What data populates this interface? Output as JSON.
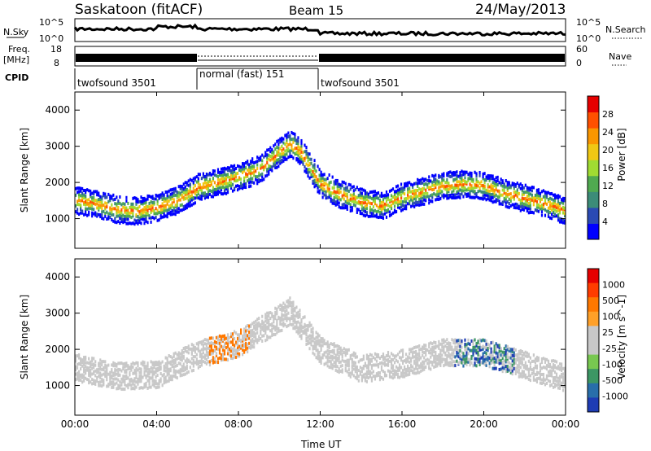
{
  "header": {
    "title": "Saskatoon (fitACF)",
    "beam": "Beam 15",
    "date": "24/May/2013"
  },
  "noise_panel": {
    "left_label": "N.Sky",
    "right_label": "N.Search",
    "left_ticks": [
      "10^5",
      "10^0"
    ],
    "right_ticks": [
      "10^5",
      "10^0"
    ]
  },
  "freq_panel": {
    "left_label_1": "Freq.",
    "left_label_2": "[MHz]",
    "left_ticks": [
      "18",
      "8"
    ],
    "right_label": "Nave",
    "right_ticks": [
      "60",
      "0"
    ]
  },
  "cpid_panel": {
    "label": "CPID",
    "segments": [
      {
        "label": "twofsound 3501",
        "start": 0,
        "end": 6
      },
      {
        "label": "normal (fast) 151",
        "start": 6,
        "end": 12
      },
      {
        "label": "twofsound 3501",
        "start": 12,
        "end": 24
      }
    ]
  },
  "power_panel": {
    "ylabel": "Slant Range [km]",
    "yticks": [
      "1000",
      "2000",
      "3000",
      "4000"
    ],
    "colorbar_label": "Power [dB]",
    "colorbar_ticks": [
      "4",
      "8",
      "12",
      "16",
      "20",
      "24",
      "28"
    ],
    "colors": [
      "#0000ff",
      "#2a4ab4",
      "#3c8c78",
      "#50aa50",
      "#a0dc32",
      "#f0c814",
      "#fa9600",
      "#ff5000",
      "#e60000"
    ]
  },
  "velocity_panel": {
    "ylabel": "Slant Range [km]",
    "yticks": [
      "1000",
      "2000",
      "3000",
      "4000"
    ],
    "colorbar_label": "Velocity [m s^-1]",
    "colorbar_ticks": [
      "1000",
      "500",
      "100",
      "25",
      "-25",
      "-100",
      "-500",
      "-1000"
    ],
    "colors": [
      "#1e3cb4",
      "#286eaa",
      "#3c9664",
      "#78c850",
      "#c8c8c8",
      "#c8c8c8",
      "#ffa028",
      "#ff7800",
      "#ff3c00",
      "#e60000"
    ]
  },
  "xaxis": {
    "label": "Time UT",
    "ticks": [
      "00:00",
      "04:00",
      "08:00",
      "12:00",
      "16:00",
      "20:00",
      "00:00"
    ]
  },
  "chart_data": {
    "type": "heatmap",
    "title": "Saskatoon (fitACF)",
    "subtitle": "Beam 15",
    "xlabel": "Time UT",
    "ylabel": "Slant Range [km]",
    "xlim_hours": [
      0,
      24
    ],
    "ylim_km": [
      180,
      4500
    ],
    "power_echo_band": {
      "hours": [
        0.0,
        1.0,
        2.0,
        3.0,
        4.0,
        5.0,
        6.0,
        7.0,
        8.0,
        9.0,
        10.0,
        10.5,
        11.0,
        12.0,
        13.0,
        14.0,
        15.0,
        16.0,
        17.0,
        18.0,
        19.0,
        20.0,
        21.0,
        22.0,
        23.0,
        24.0
      ],
      "range_km": [
        1550,
        1450,
        1300,
        1250,
        1350,
        1550,
        1900,
        2050,
        2200,
        2400,
        2900,
        3100,
        2900,
        2000,
        1700,
        1500,
        1400,
        1650,
        1800,
        1950,
        2000,
        1950,
        1750,
        1600,
        1450,
        1250
      ]
    },
    "velocity_echo_band": {
      "hours": [
        0.0,
        2.0,
        4.0,
        6.0,
        8.0,
        10.0,
        10.5,
        12.0,
        14.0,
        16.0,
        18.0,
        20.0,
        22.0,
        24.0
      ],
      "range_km": [
        1550,
        1300,
        1350,
        1900,
        2200,
        2900,
        3100,
        2000,
        1500,
        1650,
        1950,
        1950,
        1600,
        1250
      ]
    },
    "power_colorbar_db": [
      4,
      28
    ],
    "velocity_colorbar_ms": [
      -1000,
      1000
    ]
  }
}
